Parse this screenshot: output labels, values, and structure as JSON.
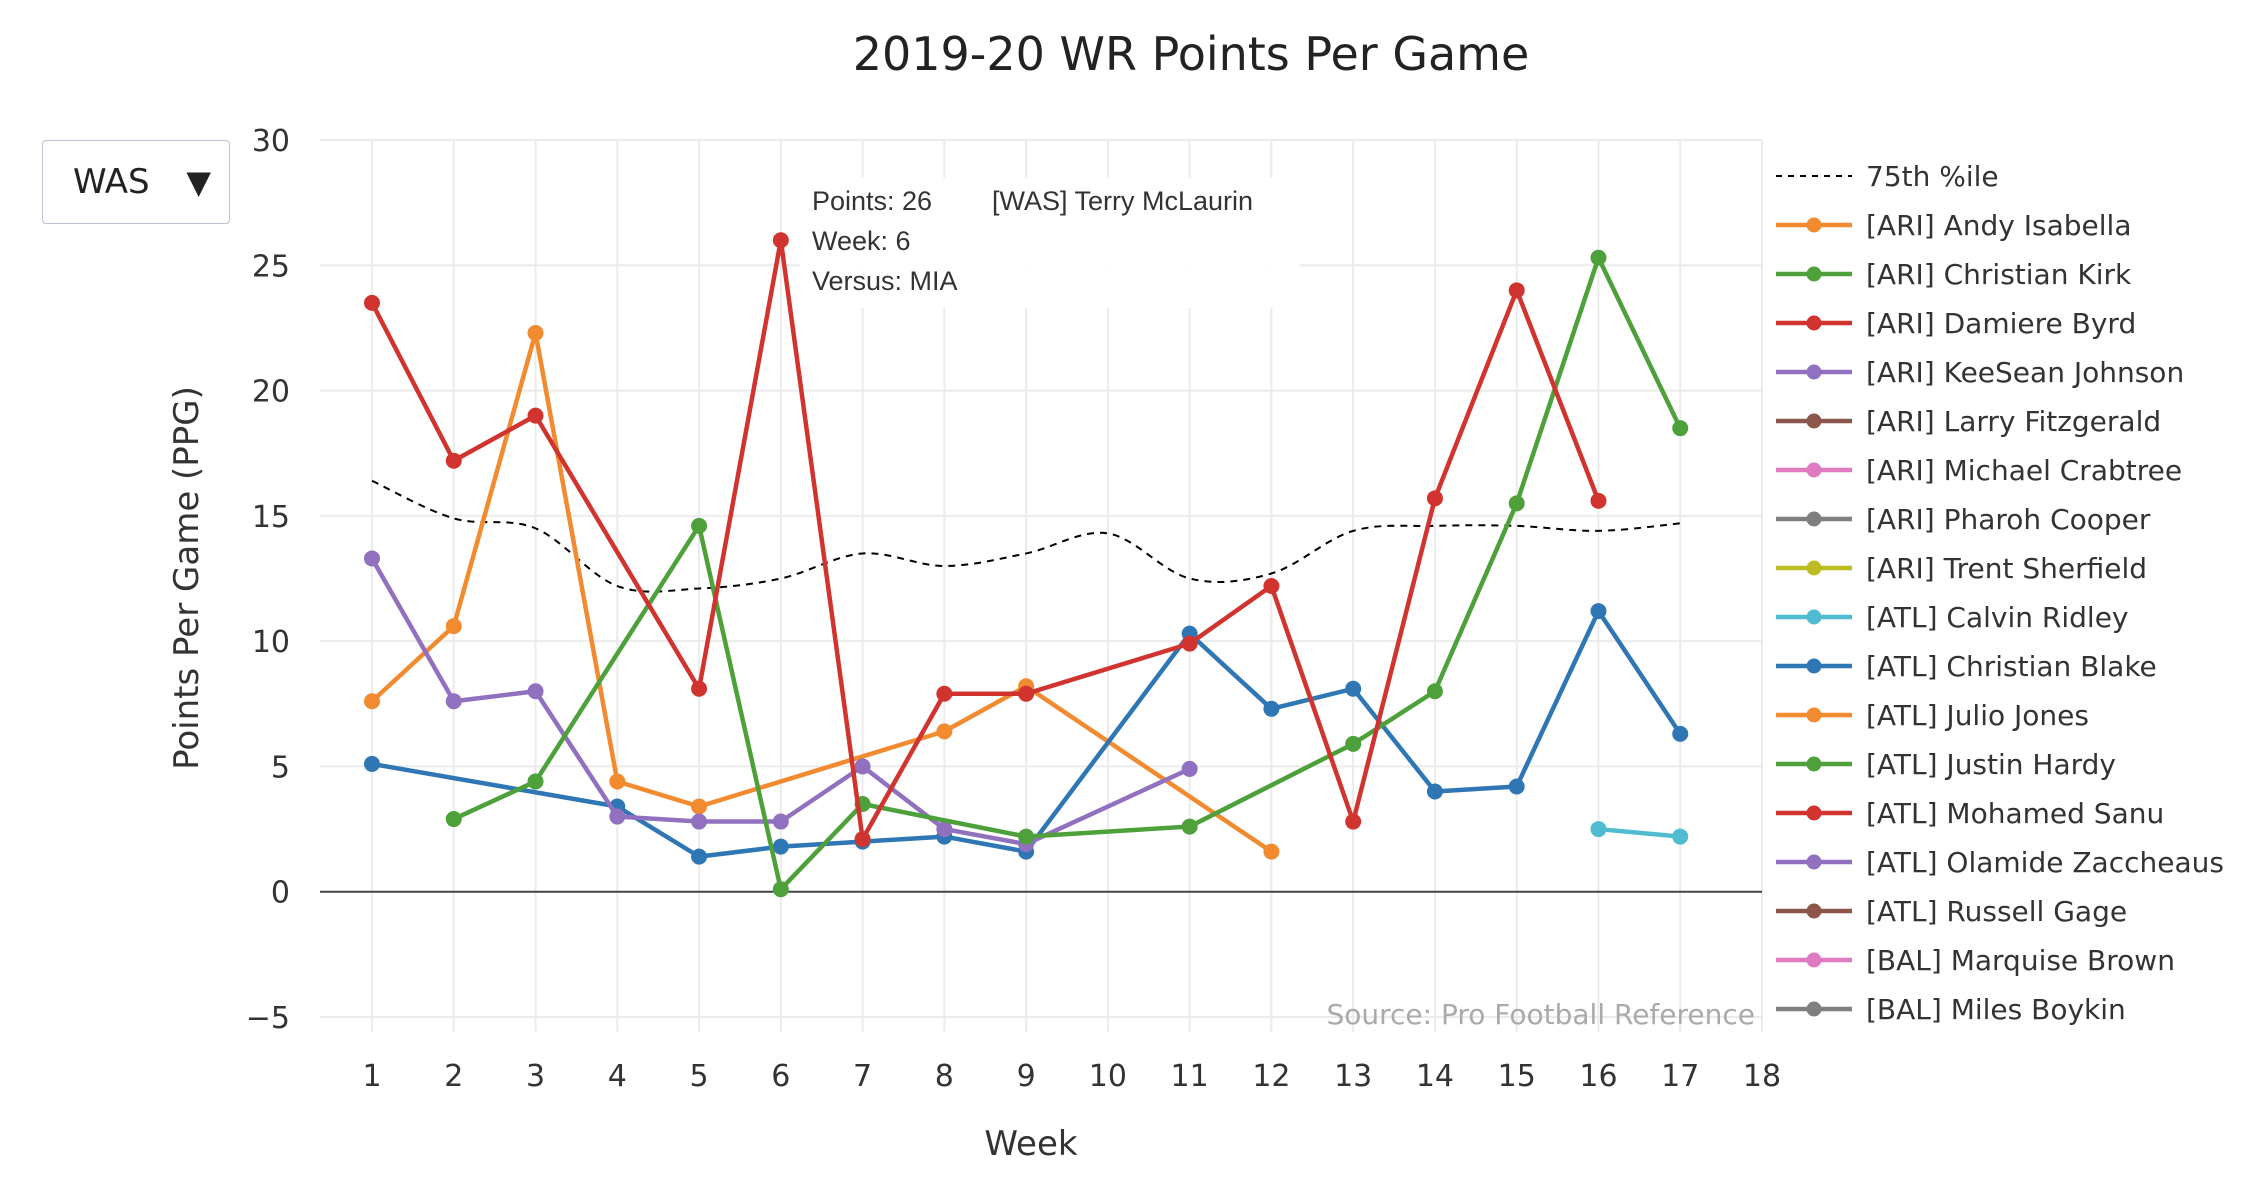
{
  "dropdown": {
    "selected": "WAS"
  },
  "colors": {
    "orange": "#f28a30",
    "green": "#4da03a",
    "red": "#d1342f",
    "purple": "#9170c0",
    "brown": "#8c564b",
    "pink": "#e07bc2",
    "gray": "#7f7f7f",
    "olive": "#bcbd22",
    "cyan": "#4fbcd2",
    "blue": "#2f77b4"
  },
  "legend": [
    {
      "label": "75th %ile",
      "color": "#000000",
      "dashed": true
    },
    {
      "label": "[ARI] Andy Isabella",
      "color": "#f28a30"
    },
    {
      "label": "[ARI] Christian Kirk",
      "color": "#4da03a"
    },
    {
      "label": "[ARI] Damiere Byrd",
      "color": "#d1342f"
    },
    {
      "label": "[ARI] KeeSean Johnson",
      "color": "#9170c0"
    },
    {
      "label": "[ARI] Larry Fitzgerald",
      "color": "#8c564b"
    },
    {
      "label": "[ARI] Michael Crabtree",
      "color": "#e07bc2"
    },
    {
      "label": "[ARI] Pharoh Cooper",
      "color": "#7f7f7f"
    },
    {
      "label": "[ARI] Trent Sherfield",
      "color": "#bcbd22"
    },
    {
      "label": "[ATL] Calvin Ridley",
      "color": "#4fbcd2"
    },
    {
      "label": "[ATL] Christian Blake",
      "color": "#2f77b4"
    },
    {
      "label": "[ATL] Julio Jones",
      "color": "#f28a30"
    },
    {
      "label": "[ATL] Justin Hardy",
      "color": "#4da03a"
    },
    {
      "label": "[ATL] Mohamed Sanu",
      "color": "#d1342f"
    },
    {
      "label": "[ATL] Olamide Zaccheaus",
      "color": "#9170c0"
    },
    {
      "label": "[ATL] Russell Gage",
      "color": "#8c564b"
    },
    {
      "label": "[BAL] Marquise Brown",
      "color": "#e07bc2"
    },
    {
      "label": "[BAL] Miles Boykin",
      "color": "#7f7f7f"
    }
  ],
  "tooltip": {
    "lines": [
      "Points: 26",
      "Week: 6",
      "Versus: MIA"
    ],
    "series_name": "[WAS] Terry McLaurin",
    "color": "#d1342f"
  },
  "source_note": "Source: Pro Football Reference",
  "chart_data": {
    "type": "line",
    "title": "2019-20 WR Points Per Game",
    "xlabel": "Week",
    "ylabel": "Points Per Game (PPG)",
    "xlim": [
      0.2,
      18
    ],
    "ylim": [
      -5,
      30
    ],
    "xticks": [
      1,
      2,
      3,
      4,
      5,
      6,
      7,
      8,
      9,
      10,
      11,
      12,
      13,
      14,
      15,
      16,
      17,
      18
    ],
    "yticks": [
      -5,
      0,
      5,
      10,
      15,
      20,
      25,
      30
    ],
    "ytick_labels": [
      "−5",
      "0",
      "5",
      "10",
      "15",
      "20",
      "25",
      "30"
    ],
    "grid": true,
    "legend_position": "right",
    "reference": {
      "name": "75th %ile",
      "style": "dashed",
      "x": [
        1,
        2,
        3,
        4,
        5,
        6,
        7,
        8,
        9,
        10,
        11,
        12,
        13,
        14,
        15,
        16,
        17
      ],
      "y": [
        16.4,
        14.9,
        14.5,
        12.2,
        12.1,
        12.5,
        13.5,
        13.0,
        13.5,
        14.3,
        12.5,
        12.7,
        14.4,
        14.6,
        14.6,
        14.4,
        14.7
      ]
    },
    "series": [
      {
        "color": "#f28a30",
        "x": [
          1,
          2,
          3,
          4,
          5,
          8,
          9,
          12
        ],
        "y": [
          7.6,
          10.6,
          22.3,
          4.4,
          3.4,
          6.4,
          8.2,
          1.6
        ]
      },
      {
        "color": "#2f77b4",
        "x": [
          1,
          4,
          5,
          6,
          7,
          8,
          9,
          11,
          12,
          13,
          14,
          15,
          16,
          17
        ],
        "y": [
          5.1,
          3.4,
          1.4,
          1.8,
          2.0,
          2.2,
          1.6,
          10.3,
          7.3,
          8.1,
          4.0,
          4.2,
          11.2,
          6.3
        ]
      },
      {
        "color": "#9170c0",
        "x": [
          1,
          2,
          3,
          4,
          5,
          6,
          7,
          8,
          9,
          11
        ],
        "y": [
          13.3,
          7.6,
          8.0,
          3.0,
          2.8,
          2.8,
          5.0,
          2.5,
          1.9,
          4.9
        ]
      },
      {
        "color": "#4da03a",
        "x": [
          2,
          3,
          5,
          6,
          7,
          9,
          11,
          13,
          14,
          15,
          16,
          17
        ],
        "y": [
          2.9,
          4.4,
          14.6,
          0.1,
          3.5,
          2.2,
          2.6,
          5.9,
          8.0,
          15.5,
          25.3,
          18.5
        ]
      },
      {
        "color": "#4fbcd2",
        "x": [
          16,
          17
        ],
        "y": [
          2.5,
          2.2
        ]
      },
      {
        "name": "[WAS] Terry McLaurin",
        "color": "#d1342f",
        "x": [
          1,
          2,
          3,
          5,
          6,
          7,
          8,
          9,
          11,
          12,
          13,
          14,
          15,
          16
        ],
        "y": [
          23.5,
          17.2,
          19.0,
          8.1,
          26,
          2.1,
          7.9,
          7.9,
          9.9,
          12.2,
          2.8,
          15.7,
          24.0,
          15.6
        ]
      }
    ]
  }
}
